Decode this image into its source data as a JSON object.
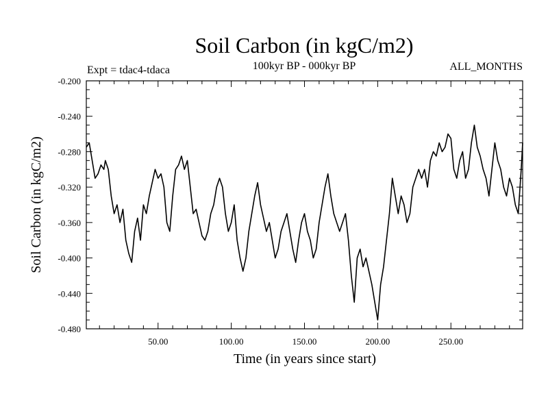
{
  "chart_data": {
    "type": "line",
    "title": "Soil Carbon (in kgC/m2)",
    "subtitle": "100kyr BP - 000kyr BP",
    "expt_label": "Expt = tdac4-tdaca",
    "months_label": "ALL_MONTHS",
    "xlabel": "Time (in years since start)",
    "ylabel": "Soil Carbon (in kgC/m2)",
    "xlim": [
      1,
      299
    ],
    "ylim": [
      -0.48,
      -0.2
    ],
    "x_ticks": [
      50,
      100,
      150,
      200,
      250
    ],
    "x_tick_labels": [
      "50.00",
      "100.00",
      "150.00",
      "200.00",
      "250.00"
    ],
    "y_ticks": [
      -0.2,
      -0.24,
      -0.28,
      -0.32,
      -0.36,
      -0.4,
      -0.44,
      -0.48
    ],
    "y_tick_labels": [
      "-0.200",
      "-0.240",
      "-0.280",
      "-0.320",
      "-0.360",
      "-0.400",
      "-0.440",
      "-0.480"
    ],
    "series": [
      {
        "name": "Soil Carbon",
        "color": "#000000",
        "x": [
          1,
          3,
          5,
          7,
          9,
          11,
          13,
          14,
          16,
          18,
          20,
          22,
          24,
          26,
          28,
          30,
          32,
          34,
          36,
          38,
          40,
          42,
          44,
          46,
          48,
          50,
          52,
          54,
          56,
          58,
          60,
          62,
          64,
          66,
          68,
          70,
          72,
          74,
          76,
          78,
          80,
          82,
          84,
          86,
          88,
          90,
          92,
          94,
          96,
          98,
          100,
          102,
          104,
          106,
          108,
          110,
          112,
          114,
          116,
          118,
          120,
          122,
          124,
          126,
          128,
          130,
          132,
          134,
          136,
          138,
          140,
          142,
          144,
          146,
          148,
          150,
          152,
          154,
          156,
          158,
          160,
          162,
          164,
          166,
          168,
          170,
          172,
          174,
          176,
          178,
          180,
          182,
          184,
          186,
          188,
          190,
          192,
          194,
          196,
          198,
          200,
          202,
          204,
          206,
          208,
          210,
          212,
          214,
          216,
          218,
          220,
          222,
          224,
          226,
          228,
          230,
          232,
          234,
          236,
          238,
          240,
          242,
          244,
          246,
          248,
          250,
          252,
          254,
          256,
          258,
          260,
          262,
          264,
          266,
          268,
          270,
          272,
          274,
          276,
          278,
          280,
          282,
          284,
          286,
          288,
          290,
          292,
          294,
          296,
          298,
          299
        ],
        "values": [
          -0.275,
          -0.27,
          -0.29,
          -0.31,
          -0.305,
          -0.295,
          -0.3,
          -0.29,
          -0.3,
          -0.33,
          -0.35,
          -0.34,
          -0.36,
          -0.345,
          -0.38,
          -0.395,
          -0.405,
          -0.37,
          -0.355,
          -0.38,
          -0.34,
          -0.35,
          -0.33,
          -0.315,
          -0.3,
          -0.31,
          -0.305,
          -0.32,
          -0.36,
          -0.37,
          -0.33,
          -0.3,
          -0.295,
          -0.285,
          -0.3,
          -0.29,
          -0.32,
          -0.35,
          -0.345,
          -0.36,
          -0.375,
          -0.38,
          -0.37,
          -0.35,
          -0.34,
          -0.32,
          -0.31,
          -0.32,
          -0.35,
          -0.37,
          -0.36,
          -0.34,
          -0.38,
          -0.4,
          -0.415,
          -0.4,
          -0.37,
          -0.35,
          -0.33,
          -0.315,
          -0.34,
          -0.355,
          -0.37,
          -0.36,
          -0.38,
          -0.4,
          -0.39,
          -0.37,
          -0.36,
          -0.35,
          -0.37,
          -0.39,
          -0.405,
          -0.38,
          -0.36,
          -0.35,
          -0.37,
          -0.38,
          -0.4,
          -0.39,
          -0.36,
          -0.34,
          -0.32,
          -0.305,
          -0.33,
          -0.35,
          -0.36,
          -0.37,
          -0.36,
          -0.35,
          -0.38,
          -0.42,
          -0.45,
          -0.4,
          -0.39,
          -0.41,
          -0.4,
          -0.415,
          -0.43,
          -0.45,
          -0.47,
          -0.43,
          -0.41,
          -0.38,
          -0.35,
          -0.31,
          -0.33,
          -0.35,
          -0.33,
          -0.34,
          -0.36,
          -0.35,
          -0.32,
          -0.31,
          -0.3,
          -0.31,
          -0.3,
          -0.32,
          -0.29,
          -0.28,
          -0.285,
          -0.27,
          -0.28,
          -0.275,
          -0.26,
          -0.265,
          -0.3,
          -0.31,
          -0.29,
          -0.28,
          -0.31,
          -0.3,
          -0.27,
          -0.25,
          -0.275,
          -0.285,
          -0.3,
          -0.31,
          -0.33,
          -0.3,
          -0.27,
          -0.29,
          -0.3,
          -0.32,
          -0.33,
          -0.31,
          -0.32,
          -0.34,
          -0.35,
          -0.3,
          -0.27
        ]
      }
    ]
  }
}
